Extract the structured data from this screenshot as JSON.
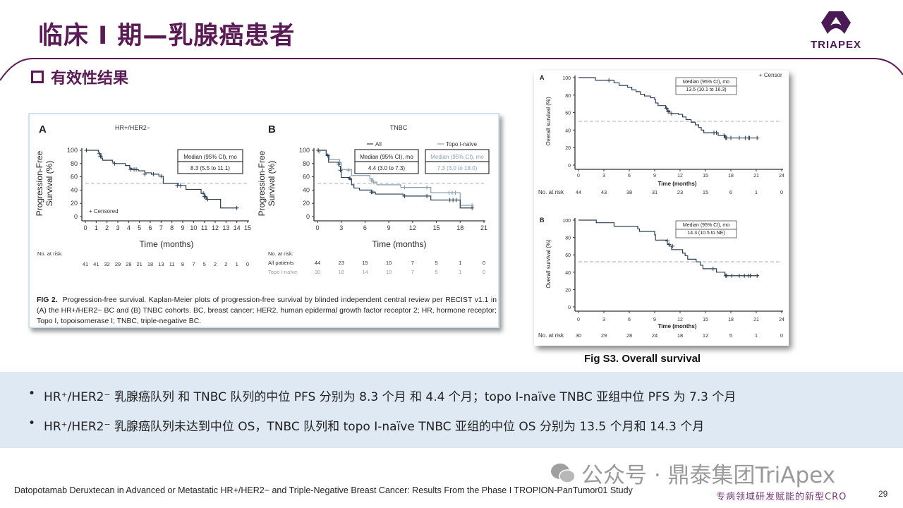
{
  "header": {
    "title": "临床 I 期—乳腺癌患者",
    "section": "有效性结果",
    "logo_text": "TRIAPEX"
  },
  "colors": {
    "brand": "#5a1a55",
    "band": "#dfe9f4",
    "curve_all": "#2b3f56",
    "curve_topo": "#8aa0b0"
  },
  "fig2_caption": {
    "label": "FIG 2.",
    "text": "Progression-free survival. Kaplan-Meier plots of progression-free survival by blinded independent central review per RECIST v1.1 in (A) the HR+/HER2− BC and (B) TNBC cohorts. BC, breast cancer; HER2, human epidermal growth factor receptor 2; HR, hormone receptor; Topo I, topoisomerase I; TNBC, triple-negative BC."
  },
  "figs3_caption": "Fig S3. Overall survival",
  "bullets": [
    "HR⁺/HER2⁻ 乳腺癌队列 和 TNBC 队列的中位 PFS 分别为 8.3 个月 和 4.4 个月；topo I-naïve TNBC 亚组中位 PFS 为 7.3 个月",
    "HR⁺/HER2⁻ 乳腺癌队列未达到中位 OS，TNBC 队列和 topo I-naïve TNBC 亚组的中位 OS 分别为 13.5 个月和 14.3 个月"
  ],
  "footer": {
    "reference": "Datopotamab Deruxtecan in Advanced or Metastatic HR+/HER2− and Triple-Negative Breast Cancer: Results From the Phase I TROPION-PanTumor01 Study",
    "watermark": "公众号 · 鼎泰集团TriApex",
    "slogan": "专病领域研发赋能的新型CRO",
    "page": "29"
  },
  "chart_data": [
    {
      "type": "line",
      "panel": "A",
      "title": "HR+/HER2−",
      "xlabel": "Time (months)",
      "ylabel": [
        "Progression-Free",
        "Survival (%)"
      ],
      "xlim": [
        0,
        15
      ],
      "xticks": [
        0,
        1,
        2,
        3,
        4,
        5,
        6,
        7,
        8,
        9,
        10,
        11,
        12,
        13,
        14,
        15
      ],
      "ylim": [
        0,
        100
      ],
      "yticks": [
        0,
        20,
        40,
        60,
        80,
        100
      ],
      "reference_line": 50,
      "median_box": {
        "header": "Median (95% CI), mo",
        "value": "8.3 (5.5 to 11.1)"
      },
      "legend": "+ Censored",
      "series": [
        {
          "steps": [
            [
              0,
              100
            ],
            [
              1.2,
              97
            ],
            [
              1.3,
              93
            ],
            [
              1.5,
              88
            ],
            [
              1.6,
              85
            ],
            [
              2.5,
              82
            ],
            [
              2.7,
              80
            ],
            [
              3.7,
              77
            ],
            [
              4.1,
              73
            ],
            [
              4.3,
              71
            ],
            [
              4.9,
              69
            ],
            [
              5.5,
              66
            ],
            [
              6.1,
              64
            ],
            [
              6.8,
              61
            ],
            [
              7.2,
              50
            ],
            [
              8.6,
              47
            ],
            [
              9.3,
              41
            ],
            [
              10.7,
              35
            ],
            [
              11.0,
              30
            ],
            [
              11.2,
              26
            ],
            [
              12.5,
              13
            ],
            [
              14.0,
              13
            ]
          ],
          "censored": [
            [
              0.1,
              100
            ],
            [
              1.3,
              95
            ],
            [
              1.4,
              91
            ],
            [
              2.7,
              80
            ],
            [
              4.2,
              71
            ],
            [
              4.5,
              71
            ],
            [
              4.7,
              71
            ],
            [
              5.5,
              64
            ],
            [
              6.3,
              64
            ],
            [
              7.0,
              61
            ],
            [
              8.5,
              47
            ],
            [
              8.8,
              47
            ],
            [
              10.9,
              35
            ],
            [
              11.0,
              30
            ],
            [
              11.1,
              30
            ],
            [
              11.3,
              26
            ],
            [
              14.0,
              13
            ]
          ]
        }
      ],
      "at_risk": {
        "label": "No. at risk:",
        "rows": [
          {
            "name": "",
            "values": [
              41,
              41,
              32,
              29,
              28,
              21,
              18,
              13,
              11,
              8,
              7,
              5,
              2,
              2,
              1,
              0
            ]
          }
        ]
      }
    },
    {
      "type": "line",
      "panel": "B",
      "title": "TNBC",
      "xlabel": "Time (months)",
      "ylabel": [
        "Progression-Free",
        "Survival (%)"
      ],
      "xlim": [
        0,
        21
      ],
      "xticks": [
        0,
        3,
        6,
        9,
        12,
        15,
        18,
        21
      ],
      "ylim": [
        0,
        100
      ],
      "yticks": [
        0,
        20,
        40,
        60,
        80,
        100
      ],
      "reference_line": 50,
      "legend": [
        "All",
        "Topo I-naïve"
      ],
      "median_boxes": [
        {
          "header": "Median (95% CI), mo",
          "value": "4.4 (3.0 to 7.3)"
        },
        {
          "header": "Median (95% CI), mo",
          "value": "7.3 (3.0 to 18.0)"
        }
      ],
      "series": [
        {
          "name": "All",
          "steps": [
            [
              0,
              100
            ],
            [
              1.1,
              93
            ],
            [
              1.4,
              82
            ],
            [
              2.7,
              76
            ],
            [
              2.9,
              70
            ],
            [
              3.0,
              59
            ],
            [
              4.0,
              56
            ],
            [
              4.3,
              48
            ],
            [
              4.6,
              43
            ],
            [
              5.3,
              40
            ],
            [
              6.8,
              37
            ],
            [
              7.3,
              34
            ],
            [
              10.8,
              31
            ],
            [
              14.3,
              25
            ],
            [
              18.0,
              13
            ],
            [
              19.5,
              13
            ]
          ],
          "censored": [
            [
              0.1,
              100
            ],
            [
              1.3,
              92
            ],
            [
              2.7,
              79
            ],
            [
              2.9,
              70
            ],
            [
              4.1,
              58
            ],
            [
              6.8,
              37
            ],
            [
              7.0,
              37
            ],
            [
              11.0,
              31
            ],
            [
              13.8,
              31
            ],
            [
              16.7,
              25
            ],
            [
              17.1,
              25
            ],
            [
              17.5,
              25
            ],
            [
              19.5,
              13
            ]
          ]
        },
        {
          "name": "Topo I-naïve",
          "steps": [
            [
              0,
              100
            ],
            [
              1.1,
              93
            ],
            [
              1.5,
              86
            ],
            [
              2.8,
              82
            ],
            [
              3.0,
              71
            ],
            [
              4.3,
              62
            ],
            [
              6.6,
              57
            ],
            [
              7.0,
              52
            ],
            [
              7.5,
              48
            ],
            [
              10.5,
              44
            ],
            [
              14.3,
              36
            ],
            [
              18.0,
              17
            ],
            [
              19.5,
              17
            ]
          ],
          "censored": [
            [
              0.2,
              98
            ],
            [
              2.8,
              81
            ],
            [
              3.9,
              70
            ],
            [
              6.8,
              55
            ],
            [
              7.1,
              52
            ],
            [
              11.0,
              44
            ],
            [
              13.8,
              44
            ],
            [
              16.6,
              36
            ],
            [
              17.0,
              36
            ],
            [
              17.4,
              36
            ],
            [
              19.5,
              17
            ]
          ]
        }
      ],
      "at_risk": {
        "label": "No. at risk:",
        "rows": [
          {
            "name": "All patients",
            "values": [
              44,
              23,
              15,
              10,
              7,
              5,
              1,
              0
            ]
          },
          {
            "name": "Topo I-naïve",
            "values": [
              30,
              18,
              14,
              10,
              7,
              5,
              1,
              0
            ]
          }
        ]
      }
    },
    {
      "type": "line",
      "panel": "A",
      "xlabel": "Time (months)",
      "ylabel": [
        "Overall survival (%)"
      ],
      "xlim": [
        0,
        24
      ],
      "xticks": [
        0,
        3,
        6,
        9,
        12,
        15,
        18,
        21,
        24
      ],
      "ylim": [
        0,
        100
      ],
      "yticks": [
        0,
        20,
        40,
        60,
        80,
        100
      ],
      "reference_line": 50,
      "median_box": {
        "header": "Median (95% CI), mo",
        "value": "13.5 (10.1 to 16.3)"
      },
      "legend": "+ Censor",
      "series": [
        {
          "steps": [
            [
              0,
              100
            ],
            [
              2,
              97
            ],
            [
              4.2,
              94
            ],
            [
              4.8,
              91
            ],
            [
              5.8,
              89
            ],
            [
              6.3,
              86
            ],
            [
              6.8,
              84
            ],
            [
              7.3,
              81
            ],
            [
              7.8,
              79
            ],
            [
              8.5,
              77
            ],
            [
              9.0,
              75
            ],
            [
              9.1,
              71
            ],
            [
              9.4,
              68
            ],
            [
              10.3,
              65
            ],
            [
              10.5,
              62
            ],
            [
              10.8,
              59
            ],
            [
              11.8,
              58
            ],
            [
              12.3,
              55
            ],
            [
              12.7,
              52
            ],
            [
              13.3,
              49
            ],
            [
              13.8,
              46
            ],
            [
              14.2,
              43
            ],
            [
              14.5,
              40
            ],
            [
              14.8,
              37
            ],
            [
              16.5,
              34
            ],
            [
              17.3,
              31
            ],
            [
              21.3,
              31
            ]
          ],
          "censored": [
            [
              3.6,
              97
            ],
            [
              10.4,
              65
            ],
            [
              10.6,
              61
            ],
            [
              11.0,
              59
            ],
            [
              16.0,
              37
            ],
            [
              16.3,
              37
            ],
            [
              17.2,
              34
            ],
            [
              17.4,
              31
            ],
            [
              17.5,
              31
            ],
            [
              18.0,
              31
            ],
            [
              19.0,
              31
            ],
            [
              19.7,
              31
            ],
            [
              20.1,
              31
            ],
            [
              20.2,
              31
            ],
            [
              21.1,
              31
            ]
          ]
        }
      ],
      "at_risk": {
        "label": "No. at risk",
        "rows": [
          {
            "name": "",
            "values": [
              44,
              43,
              38,
              31,
              23,
              15,
              6,
              1,
              0
            ]
          }
        ]
      }
    },
    {
      "type": "line",
      "panel": "B",
      "xlabel": "Time (months)",
      "ylabel": [
        "Overall survival (%)"
      ],
      "xlim": [
        0,
        24
      ],
      "xticks": [
        0,
        3,
        6,
        9,
        12,
        15,
        18,
        21,
        24
      ],
      "ylim": [
        0,
        100
      ],
      "yticks": [
        0,
        20,
        40,
        60,
        80,
        100
      ],
      "reference_line": 52,
      "median_box": {
        "header": "Median (95% CI), mo",
        "value": "14.3 (10.5 to NE)"
      },
      "series": [
        {
          "steps": [
            [
              0,
              100
            ],
            [
              2.1,
              97
            ],
            [
              4.2,
              93
            ],
            [
              7.0,
              90
            ],
            [
              7.2,
              87
            ],
            [
              9.0,
              83
            ],
            [
              9.1,
              77
            ],
            [
              10.5,
              73
            ],
            [
              10.7,
              70
            ],
            [
              11.0,
              66
            ],
            [
              12.3,
              62
            ],
            [
              12.6,
              59
            ],
            [
              12.9,
              55
            ],
            [
              13.9,
              52
            ],
            [
              14.4,
              48
            ],
            [
              14.7,
              44
            ],
            [
              16.3,
              40
            ],
            [
              17.3,
              36
            ],
            [
              21.3,
              36
            ]
          ],
          "censored": [
            [
              10.5,
              76
            ],
            [
              10.7,
              72
            ],
            [
              11.1,
              70
            ],
            [
              15.9,
              44
            ],
            [
              17.4,
              36
            ],
            [
              17.5,
              36
            ],
            [
              18.1,
              36
            ],
            [
              19.0,
              36
            ],
            [
              19.6,
              36
            ],
            [
              20.1,
              36
            ],
            [
              20.3,
              36
            ],
            [
              21.1,
              36
            ]
          ]
        }
      ],
      "at_risk": {
        "label": "No. at risk",
        "rows": [
          {
            "name": "",
            "values": [
              30,
              29,
              28,
              24,
              18,
              12,
              5,
              1,
              0
            ]
          }
        ]
      }
    }
  ]
}
